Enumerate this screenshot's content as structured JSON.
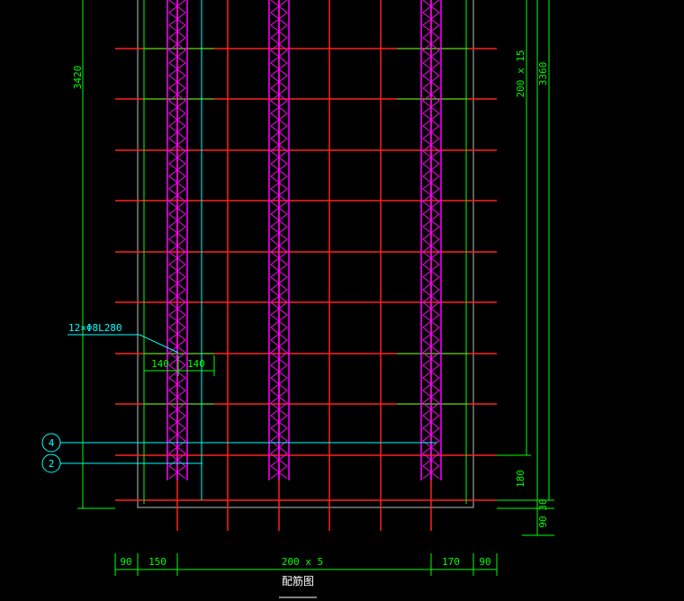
{
  "dimensions": {
    "left_total": "3420",
    "right_spacing": "200 x 15",
    "right_total": "3360",
    "right_bottom": "180",
    "right_edge_a": "90",
    "right_edge_b": "30",
    "bottom": [
      "90",
      "150",
      "200 x 5",
      "170",
      "90"
    ],
    "truss_offset_left": "140",
    "truss_offset_right": "140"
  },
  "annotation": "12×Φ8L280",
  "markers": [
    "4",
    "2"
  ],
  "title": "配筋图"
}
